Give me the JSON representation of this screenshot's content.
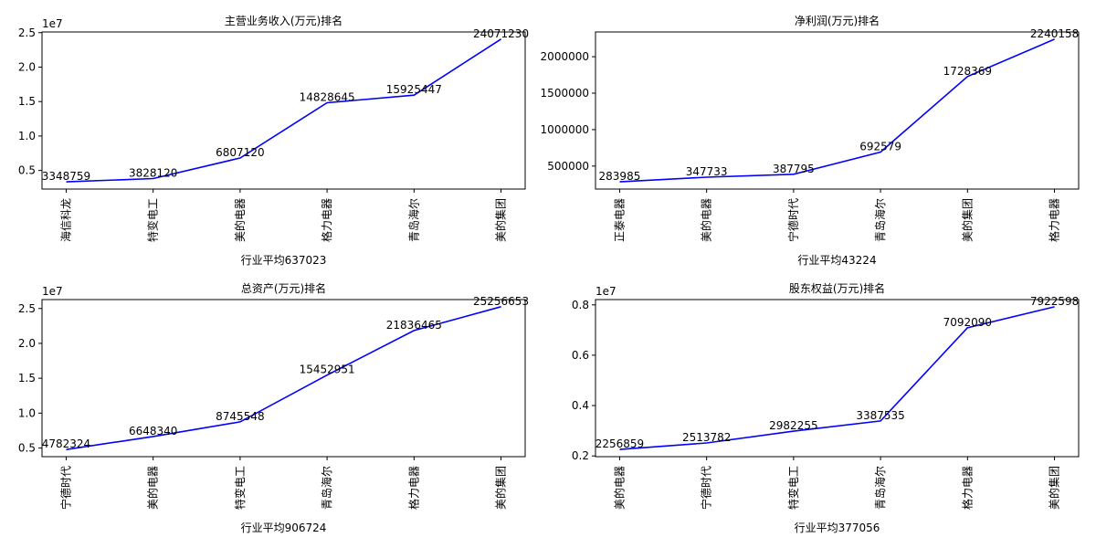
{
  "figure": {
    "background": "#ffffff",
    "line_color": "#0000ff",
    "axis_color": "#000000"
  },
  "chart_data": [
    {
      "type": "line",
      "title": "主营业务收入(万元)排名",
      "xlabel": "行业平均637023",
      "ylabel": "",
      "offset_text": "1e7",
      "scale": 10000000,
      "categories": [
        "海信科龙",
        "特变电工",
        "美的电器",
        "格力电器",
        "青岛海尔",
        "美的集团"
      ],
      "values": [
        3348759,
        3828120,
        6807120,
        14828645,
        15925447,
        24071230
      ],
      "ylim": [
        2300000,
        25100000
      ],
      "yticks": [
        5000000,
        10000000,
        15000000,
        20000000,
        25000000
      ],
      "ytick_labels": [
        "0.5",
        "1.0",
        "1.5",
        "2.0",
        "2.5"
      ],
      "grid": false,
      "legend": "none"
    },
    {
      "type": "line",
      "title": "净利润(万元)排名",
      "xlabel": "行业平均43224",
      "ylabel": "",
      "offset_text": "",
      "scale": 1,
      "categories": [
        "正泰电器",
        "美的电器",
        "宁德时代",
        "青岛海尔",
        "美的集团",
        "格力电器"
      ],
      "values": [
        283985,
        347733,
        387795,
        692579,
        1728369,
        2240158
      ],
      "ylim": [
        185000,
        2339000
      ],
      "yticks": [
        500000,
        1000000,
        1500000,
        2000000
      ],
      "ytick_labels": [
        "500000",
        "1000000",
        "1500000",
        "2000000"
      ],
      "grid": false,
      "legend": "none"
    },
    {
      "type": "line",
      "title": "总资产(万元)排名",
      "xlabel": "行业平均906724",
      "ylabel": "",
      "offset_text": "1e7",
      "scale": 10000000,
      "categories": [
        "宁德时代",
        "美的电器",
        "特变电工",
        "青岛海尔",
        "格力电器",
        "美的集团"
      ],
      "values": [
        4782324,
        6648340,
        8745548,
        15452951,
        21836465,
        25256653
      ],
      "ylim": [
        3760000,
        26280000
      ],
      "yticks": [
        5000000,
        10000000,
        15000000,
        20000000,
        25000000
      ],
      "ytick_labels": [
        "0.5",
        "1.0",
        "1.5",
        "2.0",
        "2.5"
      ],
      "grid": false,
      "legend": "none"
    },
    {
      "type": "line",
      "title": "股东权益(万元)排名",
      "xlabel": "行业平均377056",
      "ylabel": "",
      "offset_text": "1e7",
      "scale": 10000000,
      "categories": [
        "美的电器",
        "宁德时代",
        "特变电工",
        "青岛海尔",
        "格力电器",
        "美的集团"
      ],
      "values": [
        2256859,
        2513782,
        2982255,
        3387535,
        7092090,
        7922598
      ],
      "ylim": [
        1970000,
        8210000
      ],
      "yticks": [
        2000000,
        4000000,
        6000000,
        8000000
      ],
      "ytick_labels": [
        "0.2",
        "0.4",
        "0.6",
        "0.8"
      ],
      "grid": false,
      "legend": "none"
    }
  ]
}
